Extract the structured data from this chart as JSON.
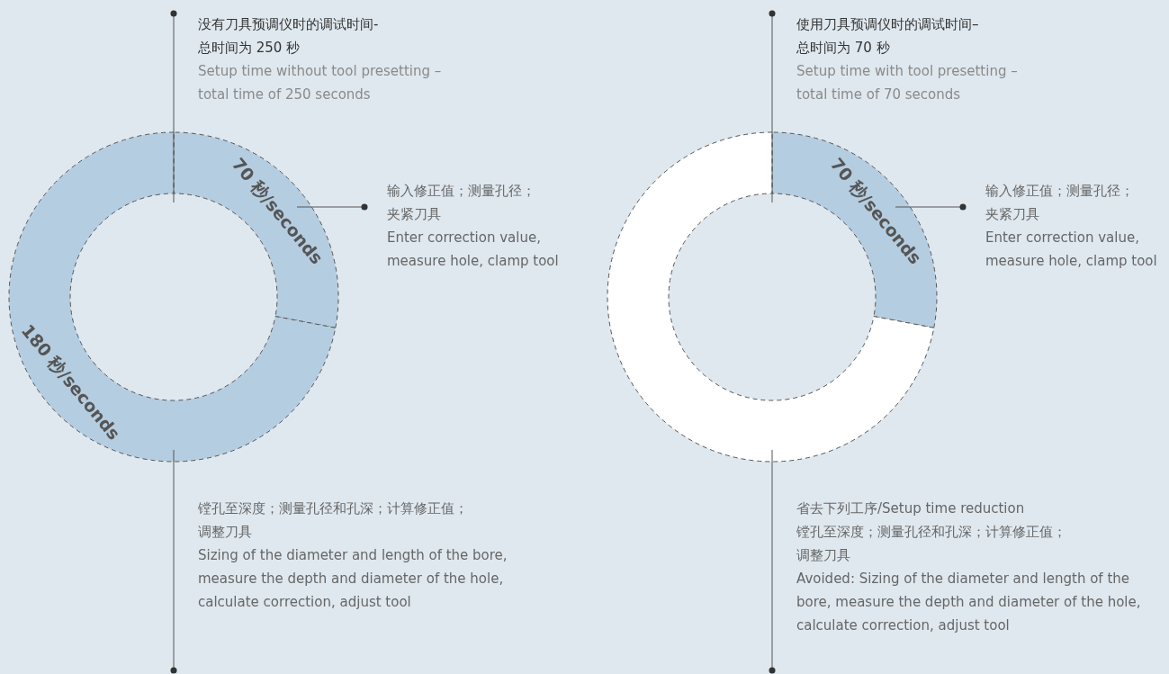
{
  "chart_data": [
    {
      "type": "donut",
      "title": "没有刀具预调仪时的调试时间-\n总时间为 250 秒",
      "subtitle": "Setup time without tool presetting –\ntotal time of 250 seconds",
      "categories": [
        "输入修正值；测量孔径；夹紧刀具\nEnter correction value,\nmeasure hole, clamp tool",
        "镗孔至深度；测量孔径和孔深；计算修正值；调整刀具\nSizing of the diameter and length of the bore,\nmeasure the depth and diameter of the hole,\ncalculate correction, adjust tool"
      ],
      "values": [
        70,
        180
      ],
      "colors": [
        "#b5cde0",
        "#b5cde0"
      ],
      "value_labels": [
        "70 秒/seconds",
        "180 秒/seconds"
      ],
      "line_style": "dashed"
    },
    {
      "type": "donut",
      "title": "使用刀具预调仪时的调试时间–\n总时间为 70 秒",
      "subtitle": "Setup time with tool presetting –\ntotal time of 70 seconds",
      "categories": [
        "输入修正值；测量孔径；夹紧刀具\nEnter correction value,\nmeasure hole, clamp tool",
        "省去下列工序/Setup time reduction\n镗孔至深度；测量孔径和孔深；计算修正值；调整刀具\nAvoided: Sizing of the diameter and length of the\nbore, measure the depth and diameter of the hole,\ncalculate correction, adjust tool"
      ],
      "values": [
        70,
        180
      ],
      "colors": [
        "#b5cde0",
        "#ffffff"
      ],
      "value_labels": [
        "70 秒/seconds",
        null
      ],
      "line_style": "dashed"
    }
  ]
}
